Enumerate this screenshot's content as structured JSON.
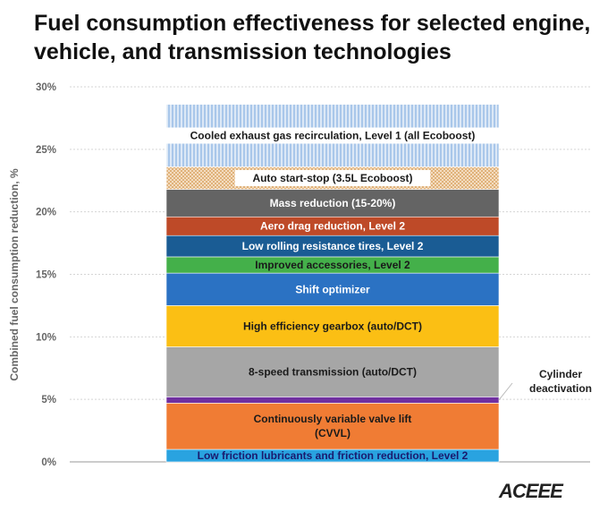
{
  "header": {
    "title": "Fuel consumption effectiveness for selected engine, vehicle, and transmission technologies"
  },
  "logo": {
    "text": "ACEEE"
  },
  "chart_data": {
    "type": "bar",
    "stacked": true,
    "title": "Fuel consumption effectiveness for selected engine, vehicle, and transmission technologies",
    "xlabel": "",
    "ylabel": "Combined fuel consumption reduction, %",
    "ylim": [
      0,
      30
    ],
    "yticks": [
      "0%",
      "5%",
      "10%",
      "15%",
      "20%",
      "25%",
      "30%"
    ],
    "grid": true,
    "segments": [
      {
        "name": "Low friction lubricants and friction reduction, Level 2",
        "value": 1.0,
        "color": "#29a3e0",
        "text_color": "#1a1a6e"
      },
      {
        "name": "Continuously variable valve lift (CVVL)",
        "lines": [
          "Continuously variable valve lift",
          "(CVVL)"
        ],
        "value": 3.7,
        "color": "#f07c34",
        "text_color": "#1a1a1a"
      },
      {
        "name": "Cylinder deactivation",
        "value": 0.5,
        "color": "#7030a0",
        "text_color": "#222222"
      },
      {
        "name": "8-speed transmission (auto/DCT)",
        "value": 4.0,
        "color": "#a6a6a6",
        "text_color": "#1a1a1a"
      },
      {
        "name": "High efficiency gearbox (auto/DCT)",
        "value": 3.3,
        "color": "#fbbf14",
        "text_color": "#1a1a1a"
      },
      {
        "name": "Shift optimizer",
        "value": 2.6,
        "color": "#2b72c3",
        "text_color": "#ffffff"
      },
      {
        "name": "Improved accessories, Level 2",
        "value": 1.3,
        "color": "#44b04a",
        "text_color": "#1a1a1a"
      },
      {
        "name": "Low rolling resistance tires, Level 2",
        "value": 1.7,
        "color": "#1a5c94",
        "text_color": "#ffffff"
      },
      {
        "name": "Aero drag reduction, Level 2",
        "value": 1.5,
        "color": "#be4a28",
        "text_color": "#ffffff"
      },
      {
        "name": "Mass reduction (15-20%)",
        "value": 2.2,
        "color": "#646464",
        "text_color": "#ffffff"
      },
      {
        "name": "Auto start-stop (3.5L Ecoboost)",
        "value": 1.8,
        "color": "#eac59b",
        "text_color": "#1a1a1a",
        "label_box": true
      },
      {
        "name": "Cooled exhaust gas recirculation, Level 1 (all Ecoboost)",
        "value": 5.0,
        "color": "#a9c7ea",
        "text_color": "#1a1a1a",
        "label_box": true
      }
    ],
    "callouts": [
      {
        "target": "Cylinder deactivation",
        "lines": [
          "Cylinder",
          "deactivation"
        ]
      }
    ]
  }
}
